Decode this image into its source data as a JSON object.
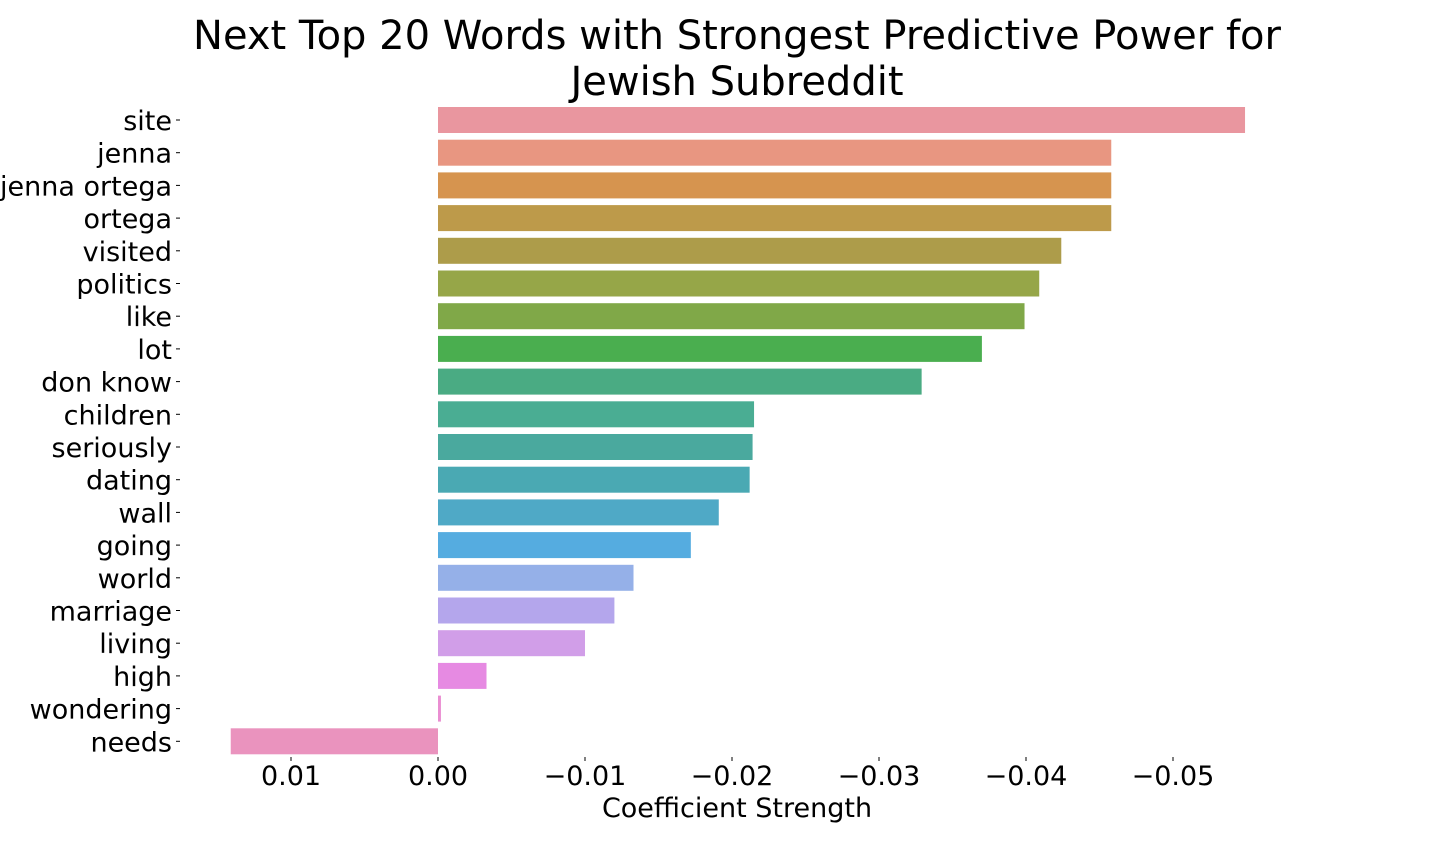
{
  "chart_data": {
    "type": "bar",
    "orientation": "horizontal",
    "title": "Next Top 20 Words with Strongest Predictive Power for Jewish Subreddit",
    "title_lines": [
      "Next Top 20 Words with Strongest Predictive Power for",
      "Jewish Subreddit"
    ],
    "xlabel": "Coefficient Strength",
    "ylabel": "",
    "x_inverted": true,
    "xlim": [
      0.014,
      -0.0565
    ],
    "xticks": [
      0.01,
      0.0,
      -0.01,
      -0.02,
      -0.03,
      -0.04,
      -0.05
    ],
    "xtick_labels": [
      "0.01",
      "0.00",
      "−0.01",
      "−0.02",
      "−0.03",
      "−0.04",
      "−0.05"
    ],
    "grid": false,
    "categories": [
      "site",
      "jenna",
      "jenna ortega",
      "ortega",
      "visited",
      "politics",
      "like",
      "lot",
      "don know",
      "children",
      "seriously",
      "dating",
      "wall",
      "going",
      "world",
      "marriage",
      "living",
      "high",
      "wondering",
      "needs"
    ],
    "values": [
      -0.0549,
      -0.0458,
      -0.0458,
      -0.0458,
      -0.0424,
      -0.0409,
      -0.0399,
      -0.037,
      -0.0329,
      -0.0215,
      -0.0214,
      -0.0212,
      -0.0191,
      -0.0172,
      -0.0133,
      -0.012,
      -0.01,
      -0.0033,
      -0.0002,
      0.0141
    ],
    "colors": [
      "#e9969f",
      "#e89681",
      "#d6944f",
      "#bd9a4a",
      "#ad9c4a",
      "#96a648",
      "#80a848",
      "#4aae4f",
      "#4aab83",
      "#4aad93",
      "#4aa99e",
      "#4aa9b3",
      "#4fa9c6",
      "#55ace0",
      "#95b0e8",
      "#b4a6ec",
      "#d19ee8",
      "#e68ae2",
      "#ea8ed2",
      "#ea93be"
    ]
  }
}
